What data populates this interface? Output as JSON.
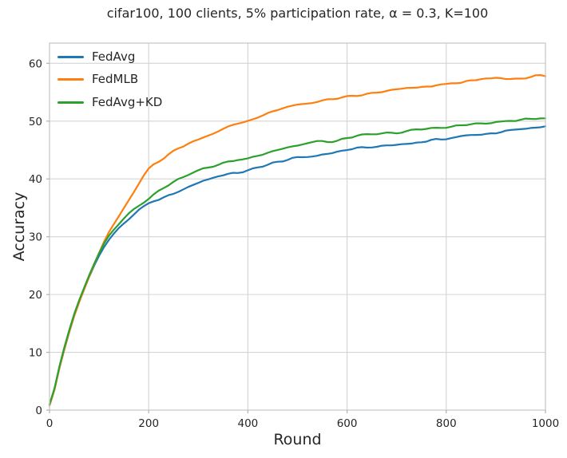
{
  "figure": {
    "title": "cifar100, 100 clients, 5% participation rate, α = 0.3, K=100",
    "xlabel": "Round",
    "ylabel": "Accuracy"
  },
  "chart_data": {
    "type": "line",
    "title": "cifar100, 100 clients, 5% participation rate, α = 0.3, K=100",
    "xlabel": "Round",
    "ylabel": "Accuracy",
    "xlim": [
      0,
      1000
    ],
    "ylim": [
      0,
      63.5
    ],
    "x_ticks": [
      0,
      200,
      400,
      600,
      800,
      1000
    ],
    "y_ticks": [
      0,
      10,
      20,
      30,
      40,
      50,
      60
    ],
    "grid": true,
    "legend_position": "upper-left",
    "legend_frame": false,
    "series": [
      {
        "name": "FedAvg",
        "color": "#1f77b4",
        "points": [
          [
            0,
            0.8
          ],
          [
            25,
            9.0
          ],
          [
            50,
            16.3
          ],
          [
            75,
            22.0
          ],
          [
            100,
            26.8
          ],
          [
            125,
            30.0
          ],
          [
            150,
            32.3
          ],
          [
            175,
            34.2
          ],
          [
            200,
            35.6
          ],
          [
            225,
            36.6
          ],
          [
            250,
            37.4
          ],
          [
            275,
            38.4
          ],
          [
            300,
            39.4
          ],
          [
            325,
            40.1
          ],
          [
            350,
            40.7
          ],
          [
            375,
            41.0
          ],
          [
            400,
            41.4
          ],
          [
            425,
            42.1
          ],
          [
            450,
            42.7
          ],
          [
            475,
            43.2
          ],
          [
            500,
            43.6
          ],
          [
            525,
            43.9
          ],
          [
            550,
            44.2
          ],
          [
            575,
            44.6
          ],
          [
            600,
            45.0
          ],
          [
            625,
            45.3
          ],
          [
            650,
            45.5
          ],
          [
            675,
            45.7
          ],
          [
            700,
            45.9
          ],
          [
            725,
            46.2
          ],
          [
            750,
            46.4
          ],
          [
            775,
            46.7
          ],
          [
            800,
            47.0
          ],
          [
            825,
            47.3
          ],
          [
            850,
            47.5
          ],
          [
            875,
            47.8
          ],
          [
            900,
            48.0
          ],
          [
            925,
            48.3
          ],
          [
            950,
            48.5
          ],
          [
            975,
            48.8
          ],
          [
            1000,
            49.1
          ]
        ]
      },
      {
        "name": "FedMLB",
        "color": "#ff7f0e",
        "points": [
          [
            0,
            0.8
          ],
          [
            25,
            9.0
          ],
          [
            50,
            16.3
          ],
          [
            75,
            22.0
          ],
          [
            100,
            27.2
          ],
          [
            125,
            31.5
          ],
          [
            150,
            34.8
          ],
          [
            175,
            38.3
          ],
          [
            200,
            41.8
          ],
          [
            225,
            43.4
          ],
          [
            250,
            44.8
          ],
          [
            275,
            45.9
          ],
          [
            300,
            46.9
          ],
          [
            325,
            47.8
          ],
          [
            350,
            48.6
          ],
          [
            375,
            49.4
          ],
          [
            400,
            50.1
          ],
          [
            425,
            50.9
          ],
          [
            450,
            51.6
          ],
          [
            475,
            52.2
          ],
          [
            500,
            52.8
          ],
          [
            525,
            53.2
          ],
          [
            550,
            53.5
          ],
          [
            575,
            53.8
          ],
          [
            600,
            54.1
          ],
          [
            625,
            54.4
          ],
          [
            650,
            54.8
          ],
          [
            675,
            55.1
          ],
          [
            700,
            55.4
          ],
          [
            725,
            55.6
          ],
          [
            750,
            55.8
          ],
          [
            775,
            56.1
          ],
          [
            800,
            56.4
          ],
          [
            825,
            56.7
          ],
          [
            850,
            56.9
          ],
          [
            875,
            57.2
          ],
          [
            900,
            57.4
          ],
          [
            925,
            57.3
          ],
          [
            950,
            57.4
          ],
          [
            975,
            57.7
          ],
          [
            1000,
            57.9
          ]
        ]
      },
      {
        "name": "FedAvg+KD",
        "color": "#2ca02c",
        "points": [
          [
            0,
            1.0
          ],
          [
            25,
            9.3
          ],
          [
            50,
            16.6
          ],
          [
            75,
            22.3
          ],
          [
            100,
            27.2
          ],
          [
            125,
            30.8
          ],
          [
            150,
            33.3
          ],
          [
            175,
            35.2
          ],
          [
            200,
            36.7
          ],
          [
            225,
            38.2
          ],
          [
            250,
            39.6
          ],
          [
            275,
            40.5
          ],
          [
            300,
            41.4
          ],
          [
            325,
            42.1
          ],
          [
            350,
            42.7
          ],
          [
            375,
            43.2
          ],
          [
            400,
            43.6
          ],
          [
            425,
            44.3
          ],
          [
            450,
            44.9
          ],
          [
            475,
            45.4
          ],
          [
            500,
            45.8
          ],
          [
            525,
            46.2
          ],
          [
            550,
            46.5
          ],
          [
            575,
            46.4
          ],
          [
            600,
            47.1
          ],
          [
            625,
            47.4
          ],
          [
            650,
            47.6
          ],
          [
            675,
            47.8
          ],
          [
            700,
            48.0
          ],
          [
            725,
            48.3
          ],
          [
            750,
            48.5
          ],
          [
            775,
            48.8
          ],
          [
            800,
            49.0
          ],
          [
            825,
            49.2
          ],
          [
            850,
            49.4
          ],
          [
            875,
            49.6
          ],
          [
            900,
            49.8
          ],
          [
            925,
            50.0
          ],
          [
            950,
            50.1
          ],
          [
            975,
            50.4
          ],
          [
            1000,
            50.7
          ]
        ]
      }
    ]
  },
  "colors": {
    "background": "#ffffff",
    "grid": "#d4d4d4",
    "spine": "#c6c6c6",
    "tick": "#b0b0b0",
    "text": "#262626"
  }
}
